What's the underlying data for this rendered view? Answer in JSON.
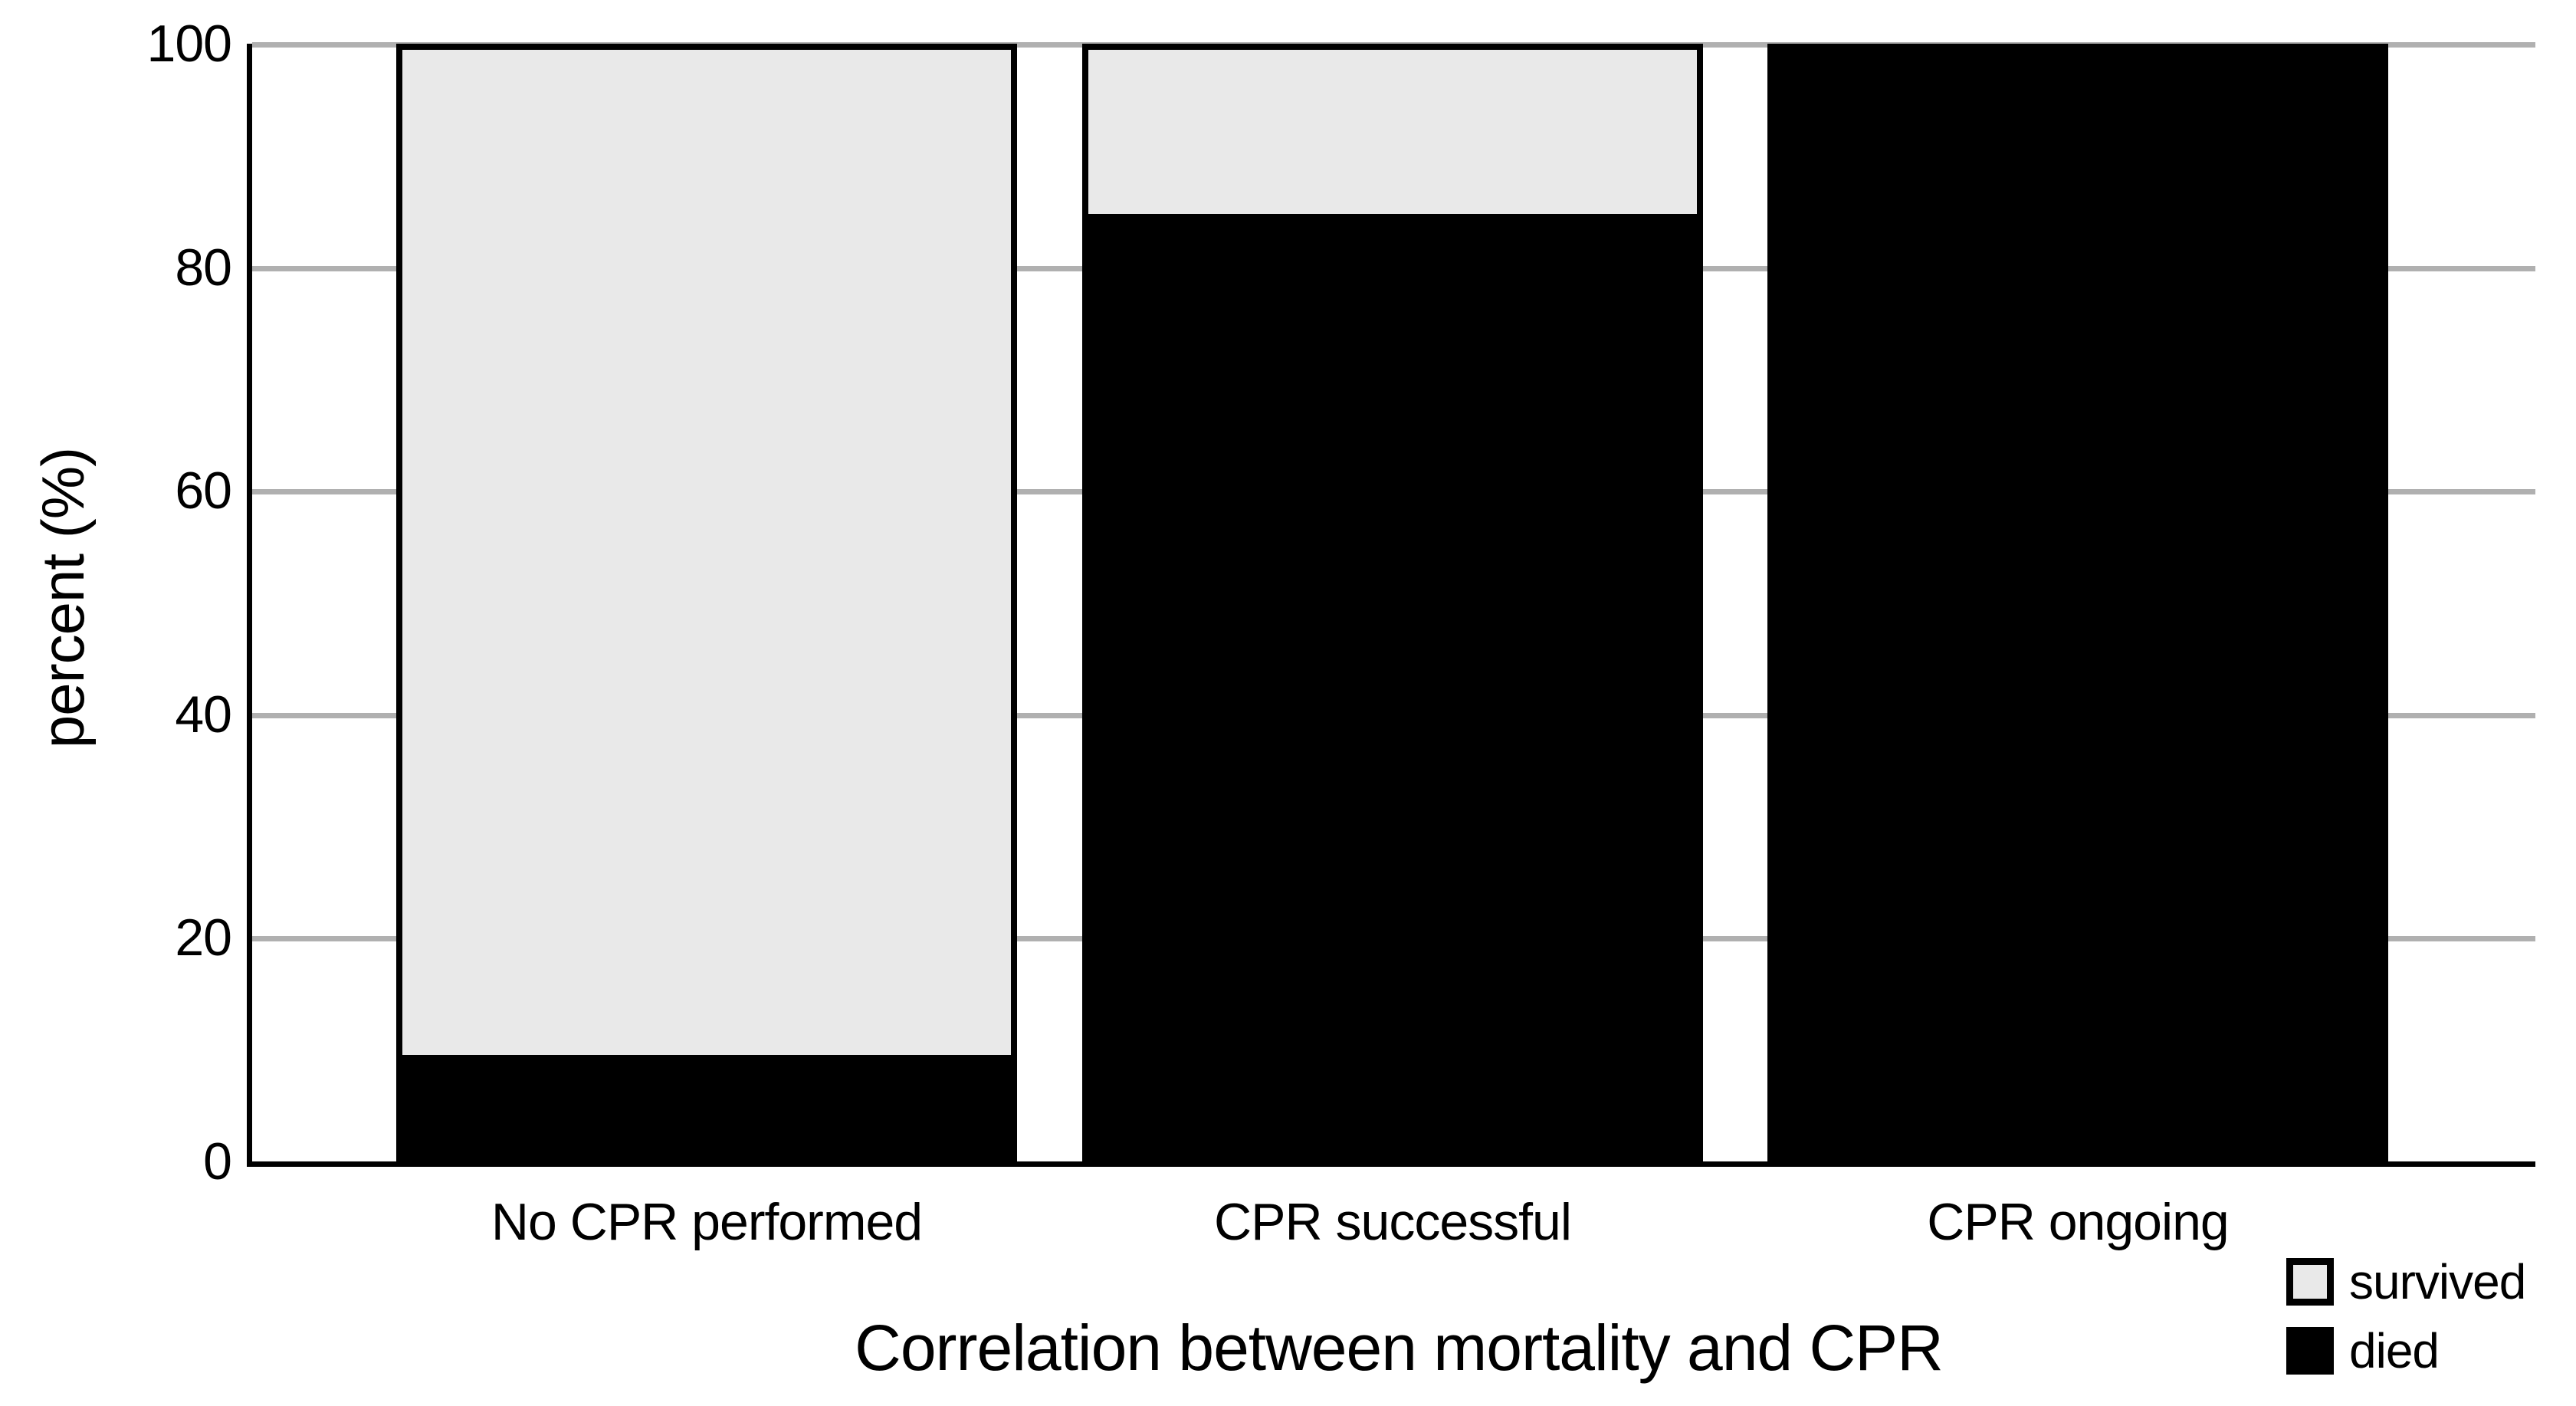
{
  "figure": {
    "background": "#ffffff",
    "text_color": "#000000"
  },
  "chart_data": {
    "type": "bar",
    "stacked": true,
    "orientation": "vertical",
    "xlabel": "Correlation between mortality and CPR",
    "ylabel": "percent (%)",
    "categories": [
      "No CPR performed",
      "CPR successful",
      "CPR ongoing"
    ],
    "series": [
      {
        "name": "survived",
        "color": "#e9e9e9",
        "values": [
          91,
          15.8,
          0
        ]
      },
      {
        "name": "died",
        "color": "#000000",
        "values": [
          9,
          84.2,
          100
        ]
      }
    ],
    "ylim": [
      0,
      100
    ],
    "yticks": [
      0,
      20,
      40,
      60,
      80,
      100
    ],
    "grid": "horizontal",
    "gridline_color": "#b0b0b0",
    "axis_color": "#000000",
    "bar_fill_survived": "#e9e9e9",
    "bar_fill_died": "#000000",
    "legend": {
      "position": "bottom-right",
      "entries": [
        "survived",
        "died"
      ]
    }
  }
}
